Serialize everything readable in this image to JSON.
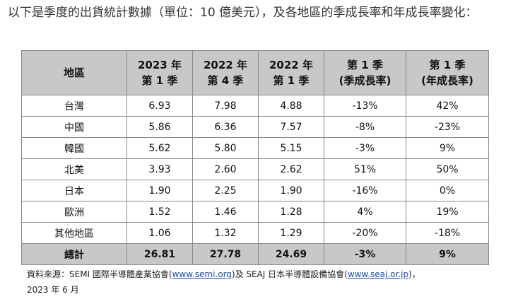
{
  "intro": "以下是季度的出貨統計數據（單位：10 億美元），及各地區的季成長率和年成長率變化：",
  "table": {
    "headers": [
      [
        "地區"
      ],
      [
        "2023 年",
        "第 1 季"
      ],
      [
        "2022 年",
        "第 4 季"
      ],
      [
        "2022 年",
        "第 1 季"
      ],
      [
        "第 1 季",
        "(季成長率)"
      ],
      [
        "第 1 季",
        "(年成長率)"
      ]
    ],
    "rows": [
      [
        "台灣",
        "6.93",
        "7.98",
        "4.88",
        "-13%",
        "42%"
      ],
      [
        "中國",
        "5.86",
        "6.36",
        "7.57",
        "-8%",
        "-23%"
      ],
      [
        "韓國",
        "5.62",
        "5.80",
        "5.15",
        "-3%",
        "9%"
      ],
      [
        "北美",
        "3.93",
        "2.60",
        "2.62",
        "51%",
        "50%"
      ],
      [
        "日本",
        "1.90",
        "2.25",
        "1.90",
        "-16%",
        "0%"
      ],
      [
        "歐洲",
        "1.52",
        "1.46",
        "1.28",
        "4%",
        "19%"
      ],
      [
        "其他地區",
        "1.06",
        "1.32",
        "1.29",
        "-20%",
        "-18%"
      ]
    ],
    "total": [
      "總計",
      "26.81",
      "27.78",
      "24.69",
      "-3%",
      "9%"
    ]
  },
  "source": {
    "prefix": "資料來源：SEMI 國際半導體產業協會(",
    "link1": "www.semi.org",
    "middle": ")及 SEAJ 日本半導體設備協會(",
    "link2": "www.seaj.or.jp",
    "suffix": ")，",
    "date": "2023 年 6 月"
  },
  "colors": {
    "header_bg": "#c8c8c8",
    "border": "#888888",
    "link": "#1a4fa8"
  }
}
